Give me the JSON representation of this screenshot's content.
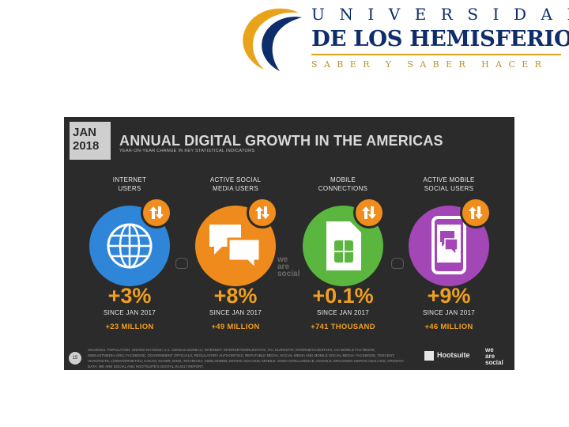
{
  "header": {
    "top_line": "UNIVERSIDAD",
    "main_line": "DE LOS HEMISFERIOS",
    "motto": "SABER Y SABER HACER",
    "colors": {
      "navy": "#0d2d6b",
      "gold": "#e0a21b"
    }
  },
  "slide": {
    "date_month": "JAN",
    "date_year": "2018",
    "title": "ANNUAL DIGITAL GROWTH IN THE AMERICAS",
    "subtitle": "YEAR-ON-YEAR CHANGE IN KEY STATISTICAL INDICATORS",
    "columns": [
      {
        "label_1": "INTERNET",
        "label_2": "USERS",
        "icon": "globe-icon",
        "color": "#2f86d8",
        "change": "+3%",
        "since": "SINCE JAN 2017",
        "absolute": "+23 MILLION"
      },
      {
        "label_1": "ACTIVE SOCIAL",
        "label_2": "MEDIA USERS",
        "icon": "chat-bubbles-icon",
        "color": "#ef8b1c",
        "change": "+8%",
        "since": "SINCE JAN 2017",
        "absolute": "+49 MILLION"
      },
      {
        "label_1": "MOBILE",
        "label_2": "CONNECTIONS",
        "icon": "sim-card-icon",
        "color": "#5ab63f",
        "change": "+0.1%",
        "since": "SINCE JAN 2017",
        "absolute": "+741 THOUSAND"
      },
      {
        "label_1": "ACTIVE MOBILE",
        "label_2": "SOCIAL USERS",
        "icon": "mobile-chat-icon",
        "color": "#a447b6",
        "change": "+9%",
        "since": "SINCE JAN 2017",
        "absolute": "+46 MILLION"
      }
    ],
    "watermark": [
      "we",
      "are",
      "social"
    ],
    "page_number": "15",
    "sources": "SOURCES: POPULATION: UNITED NATIONS; U.S. CENSUS BUREAU; INTERNET: INTERNETWORLDSTATS; ITU; EUROSTAT; INTERNETLIVESTATS; CIA WORLD FACTBOOK; MIDEASTMEDIA.ORG; FACEBOOK; GOVERNMENT OFFICIALS; REGULATORY AUTHORITIES; REPUTABLE MEDIA; SOCIAL MEDIA AND MOBILE SOCIAL MEDIA: FACEBOOK; TENCENT; VKONTAKTE; LIVEINTERNET.RU; KAKAO; NAVER; DING; TECHRASA; SIMILARWEB; KEPIOS ANALYSIS; MOBILE: GSMA INTELLIGENCE; GOOGLE; ERICSSON; KEPIOS ANALYSIS; GROWTH DATA: WE ARE SOCIAL AND HOOTSUITE'S DIGITAL IN 2017 REPORT.",
    "brand_hootsuite": "Hootsuite",
    "brand_was": [
      "we",
      "are",
      "social"
    ]
  }
}
